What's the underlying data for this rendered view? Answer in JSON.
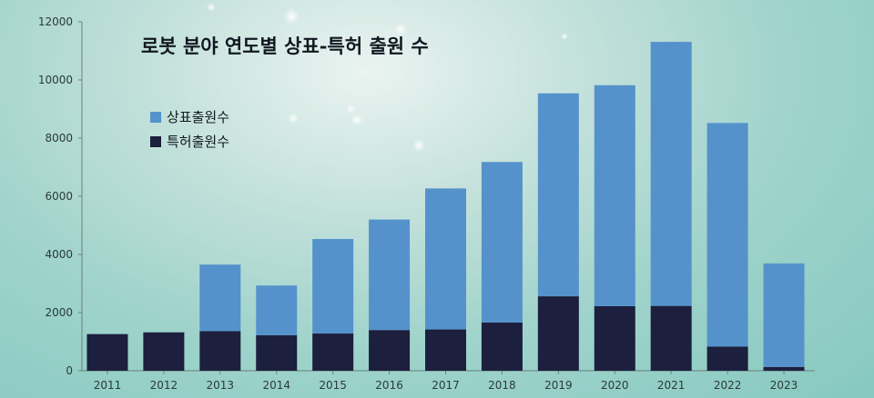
{
  "chart_data": {
    "type": "bar",
    "stacked": true,
    "title": "로봇 분야 연도별 상표-특허 출원 수",
    "xlabel": "",
    "ylabel": "",
    "categories": [
      "2011",
      "2012",
      "2013",
      "2014",
      "2015",
      "2016",
      "2017",
      "2018",
      "2019",
      "2020",
      "2021",
      "2022",
      "2023"
    ],
    "ylim": [
      0,
      12000
    ],
    "yticks": [
      0,
      2000,
      4000,
      6000,
      8000,
      10000,
      12000
    ],
    "legend_position": "top-left",
    "series": [
      {
        "name": "특허출원수",
        "color": "#1c1f3d",
        "values": [
          1260,
          1320,
          1360,
          1220,
          1280,
          1400,
          1420,
          1660,
          2560,
          2220,
          2230,
          830,
          130
        ]
      },
      {
        "name": "상표출원수",
        "color": "#5592cc",
        "values": [
          0,
          0,
          2290,
          1710,
          3250,
          3800,
          4850,
          5520,
          6980,
          7600,
          9080,
          7690,
          3560
        ]
      }
    ],
    "legend_order": [
      "상표출원수",
      "특허출원수"
    ]
  }
}
